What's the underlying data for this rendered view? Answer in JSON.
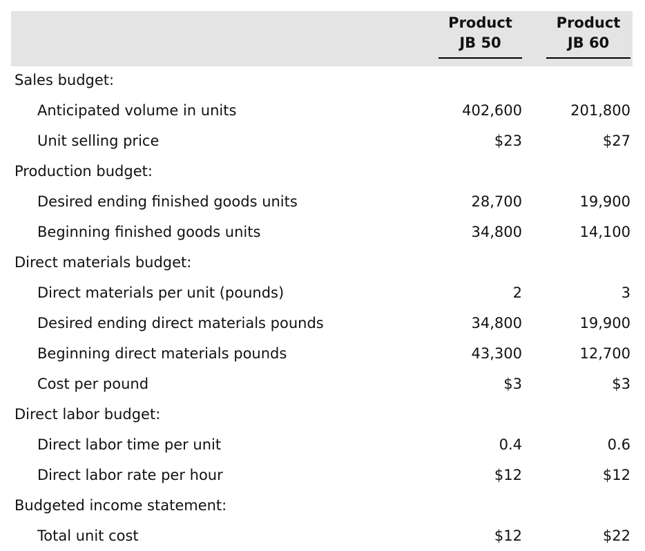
{
  "table": {
    "columns": [
      {
        "line1": "Product",
        "line2": "JB 50"
      },
      {
        "line1": "Product",
        "line2": "JB 60"
      }
    ],
    "sections": [
      {
        "title": "Sales budget:",
        "rows": [
          {
            "label": "Anticipated volume in units",
            "jb50": "402,600",
            "jb60": "201,800"
          },
          {
            "label": "Unit selling price",
            "jb50": "$23",
            "jb60": "$27"
          }
        ]
      },
      {
        "title": "Production budget:",
        "rows": [
          {
            "label": "Desired ending finished goods units",
            "jb50": "28,700",
            "jb60": "19,900"
          },
          {
            "label": "Beginning finished goods units",
            "jb50": "34,800",
            "jb60": "14,100"
          }
        ]
      },
      {
        "title": "Direct materials budget:",
        "rows": [
          {
            "label": "Direct materials per unit (pounds)",
            "jb50": "2",
            "jb60": "3"
          },
          {
            "label": "Desired ending direct materials pounds",
            "jb50": "34,800",
            "jb60": "19,900"
          },
          {
            "label": "Beginning direct materials pounds",
            "jb50": "43,300",
            "jb60": "12,700"
          },
          {
            "label": "Cost per pound",
            "jb50": "$3",
            "jb60": "$3"
          }
        ]
      },
      {
        "title": "Direct labor budget:",
        "rows": [
          {
            "label": "Direct labor time per unit",
            "jb50": "0.4",
            "jb60": "0.6"
          },
          {
            "label": "Direct labor rate per hour",
            "jb50": "$12",
            "jb60": "$12"
          }
        ]
      },
      {
        "title": "Budgeted income statement:",
        "rows": [
          {
            "label": "Total unit cost",
            "jb50": "$12",
            "jb60": "$22"
          }
        ]
      }
    ]
  },
  "colors": {
    "header_background": "#e4e4e4",
    "text": "#111111",
    "underline": "#000000"
  }
}
